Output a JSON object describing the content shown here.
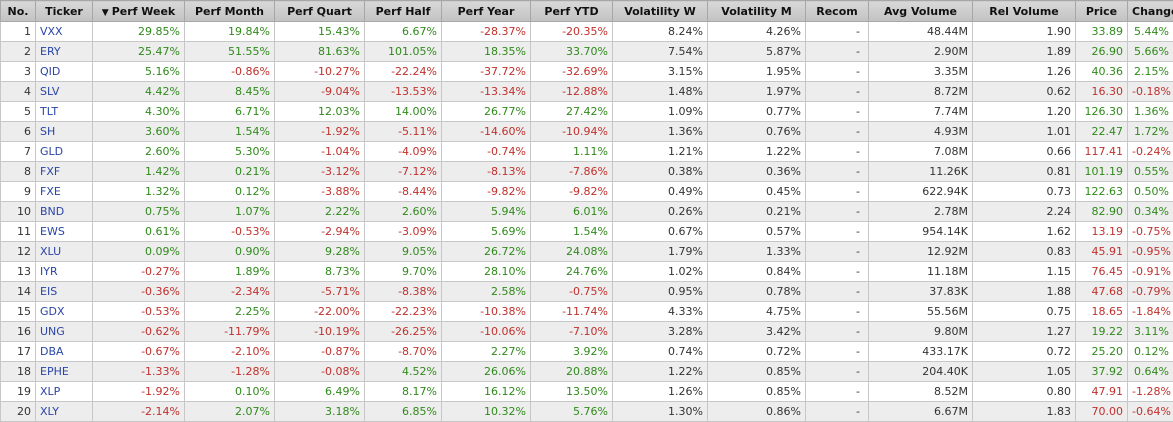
{
  "table": {
    "sort_indicator_icon": "triangle-down-icon",
    "columns": [
      {
        "key": "no",
        "label": "No."
      },
      {
        "key": "ticker",
        "label": "Ticker"
      },
      {
        "key": "perf_week",
        "label": "Perf Week",
        "sorted": "desc"
      },
      {
        "key": "perf_month",
        "label": "Perf Month"
      },
      {
        "key": "perf_quart",
        "label": "Perf Quart"
      },
      {
        "key": "perf_half",
        "label": "Perf Half"
      },
      {
        "key": "perf_year",
        "label": "Perf Year"
      },
      {
        "key": "perf_ytd",
        "label": "Perf YTD"
      },
      {
        "key": "vol_w",
        "label": "Volatility W"
      },
      {
        "key": "vol_m",
        "label": "Volatility M"
      },
      {
        "key": "recom",
        "label": "Recom"
      },
      {
        "key": "avg_volume",
        "label": "Avg Volume"
      },
      {
        "key": "rel_volume",
        "label": "Rel Volume"
      },
      {
        "key": "price",
        "label": "Price"
      },
      {
        "key": "change",
        "label": "Change"
      }
    ],
    "colors": {
      "positive": "#2f8a1b",
      "negative": "#c0302c",
      "ticker": "#2a45a8",
      "header_bg": "#c9c9c9",
      "row_alt_bg": "#ededed"
    },
    "rows": [
      [
        "1",
        "VXX",
        "29.85%",
        "19.84%",
        "15.43%",
        "6.67%",
        "-28.37%",
        "-20.35%",
        "8.24%",
        "4.26%",
        "-",
        "48.44M",
        "1.90",
        "33.89",
        "5.44%"
      ],
      [
        "2",
        "ERY",
        "25.47%",
        "51.55%",
        "81.63%",
        "101.05%",
        "18.35%",
        "33.70%",
        "7.54%",
        "5.87%",
        "-",
        "2.90M",
        "1.89",
        "26.90",
        "5.66%"
      ],
      [
        "3",
        "QID",
        "5.16%",
        "-0.86%",
        "-10.27%",
        "-22.24%",
        "-37.72%",
        "-32.69%",
        "3.15%",
        "1.95%",
        "-",
        "3.35M",
        "1.26",
        "40.36",
        "2.15%"
      ],
      [
        "4",
        "SLV",
        "4.42%",
        "8.45%",
        "-9.04%",
        "-13.53%",
        "-13.34%",
        "-12.88%",
        "1.48%",
        "1.97%",
        "-",
        "8.72M",
        "0.62",
        "16.30",
        "-0.18%"
      ],
      [
        "5",
        "TLT",
        "4.30%",
        "6.71%",
        "12.03%",
        "14.00%",
        "26.77%",
        "27.42%",
        "1.09%",
        "0.77%",
        "-",
        "7.74M",
        "1.20",
        "126.30",
        "1.36%"
      ],
      [
        "6",
        "SH",
        "3.60%",
        "1.54%",
        "-1.92%",
        "-5.11%",
        "-14.60%",
        "-10.94%",
        "1.36%",
        "0.76%",
        "-",
        "4.93M",
        "1.01",
        "22.47",
        "1.72%"
      ],
      [
        "7",
        "GLD",
        "2.60%",
        "5.30%",
        "-1.04%",
        "-4.09%",
        "-0.74%",
        "1.11%",
        "1.21%",
        "1.22%",
        "-",
        "7.08M",
        "0.66",
        "117.41",
        "-0.24%"
      ],
      [
        "8",
        "FXF",
        "1.42%",
        "0.21%",
        "-3.12%",
        "-7.12%",
        "-8.13%",
        "-7.86%",
        "0.38%",
        "0.36%",
        "-",
        "11.26K",
        "0.81",
        "101.19",
        "0.55%"
      ],
      [
        "9",
        "FXE",
        "1.32%",
        "0.12%",
        "-3.88%",
        "-8.44%",
        "-9.82%",
        "-9.82%",
        "0.49%",
        "0.45%",
        "-",
        "622.94K",
        "0.73",
        "122.63",
        "0.50%"
      ],
      [
        "10",
        "BND",
        "0.75%",
        "1.07%",
        "2.22%",
        "2.60%",
        "5.94%",
        "6.01%",
        "0.26%",
        "0.21%",
        "-",
        "2.78M",
        "2.24",
        "82.90",
        "0.34%"
      ],
      [
        "11",
        "EWS",
        "0.61%",
        "-0.53%",
        "-2.94%",
        "-3.09%",
        "5.69%",
        "1.54%",
        "0.67%",
        "0.57%",
        "-",
        "954.14K",
        "1.62",
        "13.19",
        "-0.75%"
      ],
      [
        "12",
        "XLU",
        "0.09%",
        "0.90%",
        "9.28%",
        "9.05%",
        "26.72%",
        "24.08%",
        "1.79%",
        "1.33%",
        "-",
        "12.92M",
        "0.83",
        "45.91",
        "-0.95%"
      ],
      [
        "13",
        "IYR",
        "-0.27%",
        "1.89%",
        "8.73%",
        "9.70%",
        "28.10%",
        "24.76%",
        "1.02%",
        "0.84%",
        "-",
        "11.18M",
        "1.15",
        "76.45",
        "-0.91%"
      ],
      [
        "14",
        "EIS",
        "-0.36%",
        "-2.34%",
        "-5.71%",
        "-8.38%",
        "2.58%",
        "-0.75%",
        "0.95%",
        "0.78%",
        "-",
        "37.83K",
        "1.88",
        "47.68",
        "-0.79%"
      ],
      [
        "15",
        "GDX",
        "-0.53%",
        "2.25%",
        "-22.00%",
        "-22.23%",
        "-10.38%",
        "-11.74%",
        "4.33%",
        "4.75%",
        "-",
        "55.56M",
        "0.75",
        "18.65",
        "-1.84%"
      ],
      [
        "16",
        "UNG",
        "-0.62%",
        "-11.79%",
        "-10.19%",
        "-26.25%",
        "-10.06%",
        "-7.10%",
        "3.28%",
        "3.42%",
        "-",
        "9.80M",
        "1.27",
        "19.22",
        "3.11%"
      ],
      [
        "17",
        "DBA",
        "-0.67%",
        "-2.10%",
        "-0.87%",
        "-8.70%",
        "2.27%",
        "3.92%",
        "0.74%",
        "0.72%",
        "-",
        "433.17K",
        "0.72",
        "25.20",
        "0.12%"
      ],
      [
        "18",
        "EPHE",
        "-1.33%",
        "-1.28%",
        "-0.08%",
        "4.52%",
        "26.06%",
        "20.88%",
        "1.22%",
        "0.85%",
        "-",
        "204.40K",
        "1.05",
        "37.92",
        "0.64%"
      ],
      [
        "19",
        "XLP",
        "-1.92%",
        "0.10%",
        "6.49%",
        "8.17%",
        "16.12%",
        "13.50%",
        "1.26%",
        "0.85%",
        "-",
        "8.52M",
        "0.80",
        "47.91",
        "-1.28%"
      ],
      [
        "20",
        "XLY",
        "-2.14%",
        "2.07%",
        "3.18%",
        "6.85%",
        "10.32%",
        "5.76%",
        "1.30%",
        "0.86%",
        "-",
        "6.67M",
        "1.83",
        "70.00",
        "-0.64%"
      ]
    ]
  }
}
